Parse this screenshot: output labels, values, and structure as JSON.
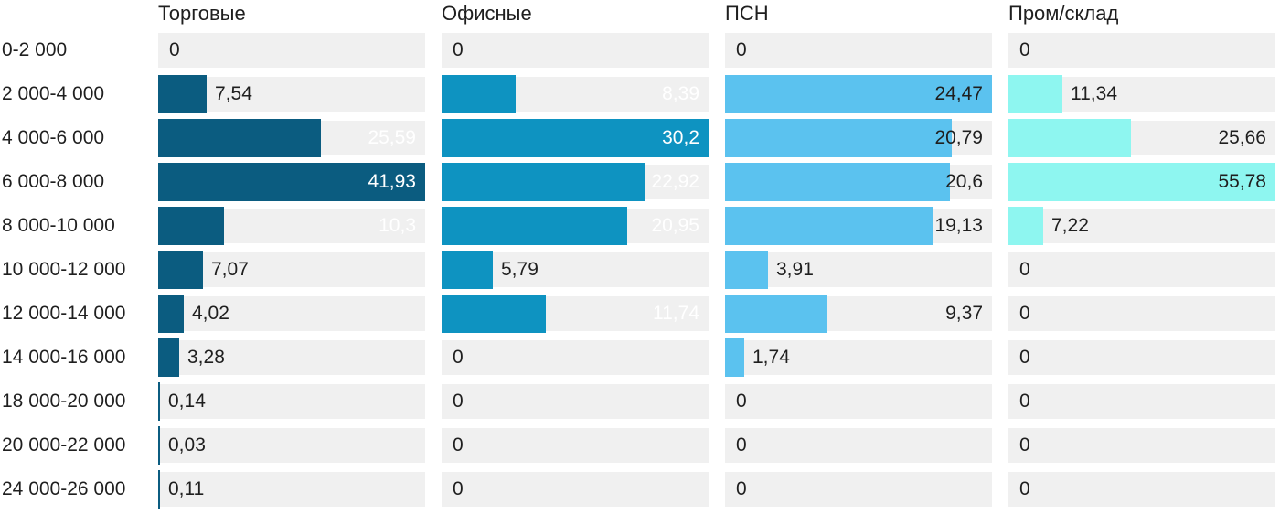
{
  "colors": {
    "page_background": "#FFFFFF",
    "track": "#F0F0F0",
    "text": "#1F1F1F",
    "series_retail": "#0B5C80",
    "series_office": "#0E93C1",
    "series_psn": "#5BC2EF",
    "series_industrial": "#8EF6F0"
  },
  "chart_data": {
    "type": "bar",
    "orientation": "horizontal",
    "layout": "small-multiples-4-columns",
    "grid": false,
    "legend_position": "column-headers",
    "track_color": "#F0F0F0",
    "text_color": "#1F1F1F",
    "categories": [
      "0-2 000",
      "2 000-4 000",
      "4 000-6 000",
      "6 000-8 000",
      "8 000-10 000",
      "10 000-12 000",
      "12 000-14 000",
      "14 000-16 000",
      "18 000-20 000",
      "20 000-22 000",
      "24 000-26 000"
    ],
    "series": [
      {
        "name": "Торговые",
        "color": "#0B5C80",
        "text_color_inside": "#FFFFFF",
        "scale_max": 41.93,
        "values": [
          0,
          7.54,
          25.59,
          41.93,
          10.3,
          7.07,
          4.02,
          3.28,
          0.14,
          0.03,
          0.11
        ],
        "labels": [
          "0",
          "7,54",
          "25,59",
          "41,93",
          "10,3",
          "7,07",
          "4,02",
          "3,28",
          "0,14",
          "0,03",
          "0,11"
        ]
      },
      {
        "name": "Офисные",
        "color": "#0E93C1",
        "text_color_inside": "#FFFFFF",
        "scale_max": 30.2,
        "values": [
          0,
          8.39,
          30.2,
          22.92,
          20.95,
          5.79,
          11.74,
          0,
          0,
          0,
          0
        ],
        "labels": [
          "0",
          "8,39",
          "30,2",
          "22,92",
          "20,95",
          "5,79",
          "11,74",
          "0",
          "0",
          "0",
          "0"
        ]
      },
      {
        "name": "ПСН",
        "color": "#5BC2EF",
        "text_color_inside": "#1F1F1F",
        "scale_max": 24.47,
        "values": [
          0,
          24.47,
          20.79,
          20.6,
          19.13,
          3.91,
          9.37,
          1.74,
          0,
          0,
          0
        ],
        "labels": [
          "0",
          "24,47",
          "20,79",
          "20,6",
          "19,13",
          "3,91",
          "9,37",
          "1,74",
          "0",
          "0",
          "0"
        ]
      },
      {
        "name": "Пром/склад",
        "color": "#8EF6F0",
        "text_color_inside": "#1F1F1F",
        "scale_max": 55.78,
        "values": [
          0,
          11.34,
          25.66,
          55.78,
          7.22,
          0,
          0,
          0,
          0,
          0,
          0
        ],
        "labels": [
          "0",
          "11,34",
          "25,66",
          "55,78",
          "7,22",
          "0",
          "0",
          "0",
          "0",
          "0",
          "0"
        ]
      }
    ]
  }
}
